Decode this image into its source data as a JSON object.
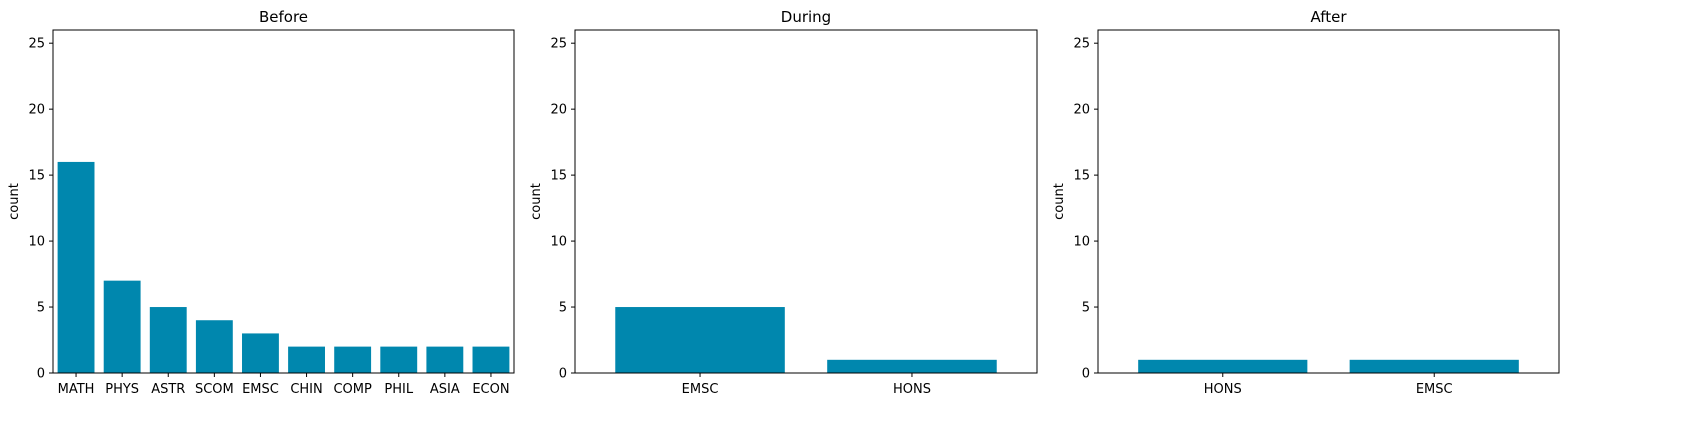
{
  "chart_data": [
    {
      "type": "bar",
      "title": "Before",
      "ylabel": "count",
      "xlabel": "",
      "ylim": [
        0,
        26
      ],
      "yticks": [
        0,
        5,
        10,
        15,
        20,
        25
      ],
      "bar_color": "#0087ae",
      "categories": [
        "MATH",
        "PHYS",
        "ASTR",
        "SCOM",
        "EMSC",
        "CHIN",
        "COMP",
        "PHIL",
        "ASIA",
        "ECON"
      ],
      "values": [
        16,
        7,
        5,
        4,
        3,
        2,
        2,
        2,
        2,
        2
      ]
    },
    {
      "type": "bar",
      "title": "During",
      "ylabel": "count",
      "xlabel": "",
      "ylim": [
        0,
        26
      ],
      "yticks": [
        0,
        5,
        10,
        15,
        20,
        25
      ],
      "bar_color": "#0087ae",
      "categories": [
        "EMSC",
        "HONS"
      ],
      "values": [
        5,
        1
      ]
    },
    {
      "type": "bar",
      "title": "After",
      "ylabel": "count",
      "xlabel": "",
      "ylim": [
        0,
        26
      ],
      "yticks": [
        0,
        5,
        10,
        15,
        20,
        25
      ],
      "bar_color": "#0087ae",
      "categories": [
        "HONS",
        "EMSC"
      ],
      "values": [
        1,
        1
      ]
    }
  ]
}
